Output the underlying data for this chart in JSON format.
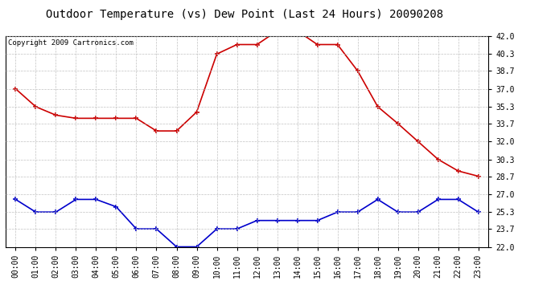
{
  "title": "Outdoor Temperature (vs) Dew Point (Last 24 Hours) 20090208",
  "copyright": "Copyright 2009 Cartronics.com",
  "hours": [
    "00:00",
    "01:00",
    "02:00",
    "03:00",
    "04:00",
    "05:00",
    "06:00",
    "07:00",
    "08:00",
    "09:00",
    "10:00",
    "11:00",
    "12:00",
    "13:00",
    "14:00",
    "15:00",
    "16:00",
    "17:00",
    "18:00",
    "19:00",
    "20:00",
    "21:00",
    "22:00",
    "23:00"
  ],
  "temp": [
    37.0,
    35.3,
    34.5,
    34.2,
    34.2,
    34.2,
    34.2,
    33.0,
    33.0,
    34.8,
    40.3,
    41.2,
    41.2,
    42.5,
    42.5,
    41.2,
    41.2,
    38.7,
    35.3,
    33.7,
    32.0,
    30.3,
    29.2,
    28.7
  ],
  "dew": [
    26.5,
    25.3,
    25.3,
    26.5,
    26.5,
    25.8,
    23.7,
    23.7,
    22.0,
    22.0,
    23.7,
    23.7,
    24.5,
    24.5,
    24.5,
    24.5,
    25.3,
    25.3,
    26.5,
    25.3,
    25.3,
    26.5,
    26.5,
    25.3
  ],
  "temp_color": "#cc0000",
  "dew_color": "#0000cc",
  "ylim_min": 22.0,
  "ylim_max": 42.0,
  "yticks": [
    22.0,
    23.7,
    25.3,
    27.0,
    28.7,
    30.3,
    32.0,
    33.7,
    35.3,
    37.0,
    38.7,
    40.3,
    42.0
  ],
  "bg_color": "#ffffff",
  "grid_color": "#bbbbbb",
  "title_fontsize": 10,
  "copyright_fontsize": 6.5,
  "tick_fontsize": 7,
  "marker": "+",
  "marker_size": 4,
  "linewidth": 1.2
}
